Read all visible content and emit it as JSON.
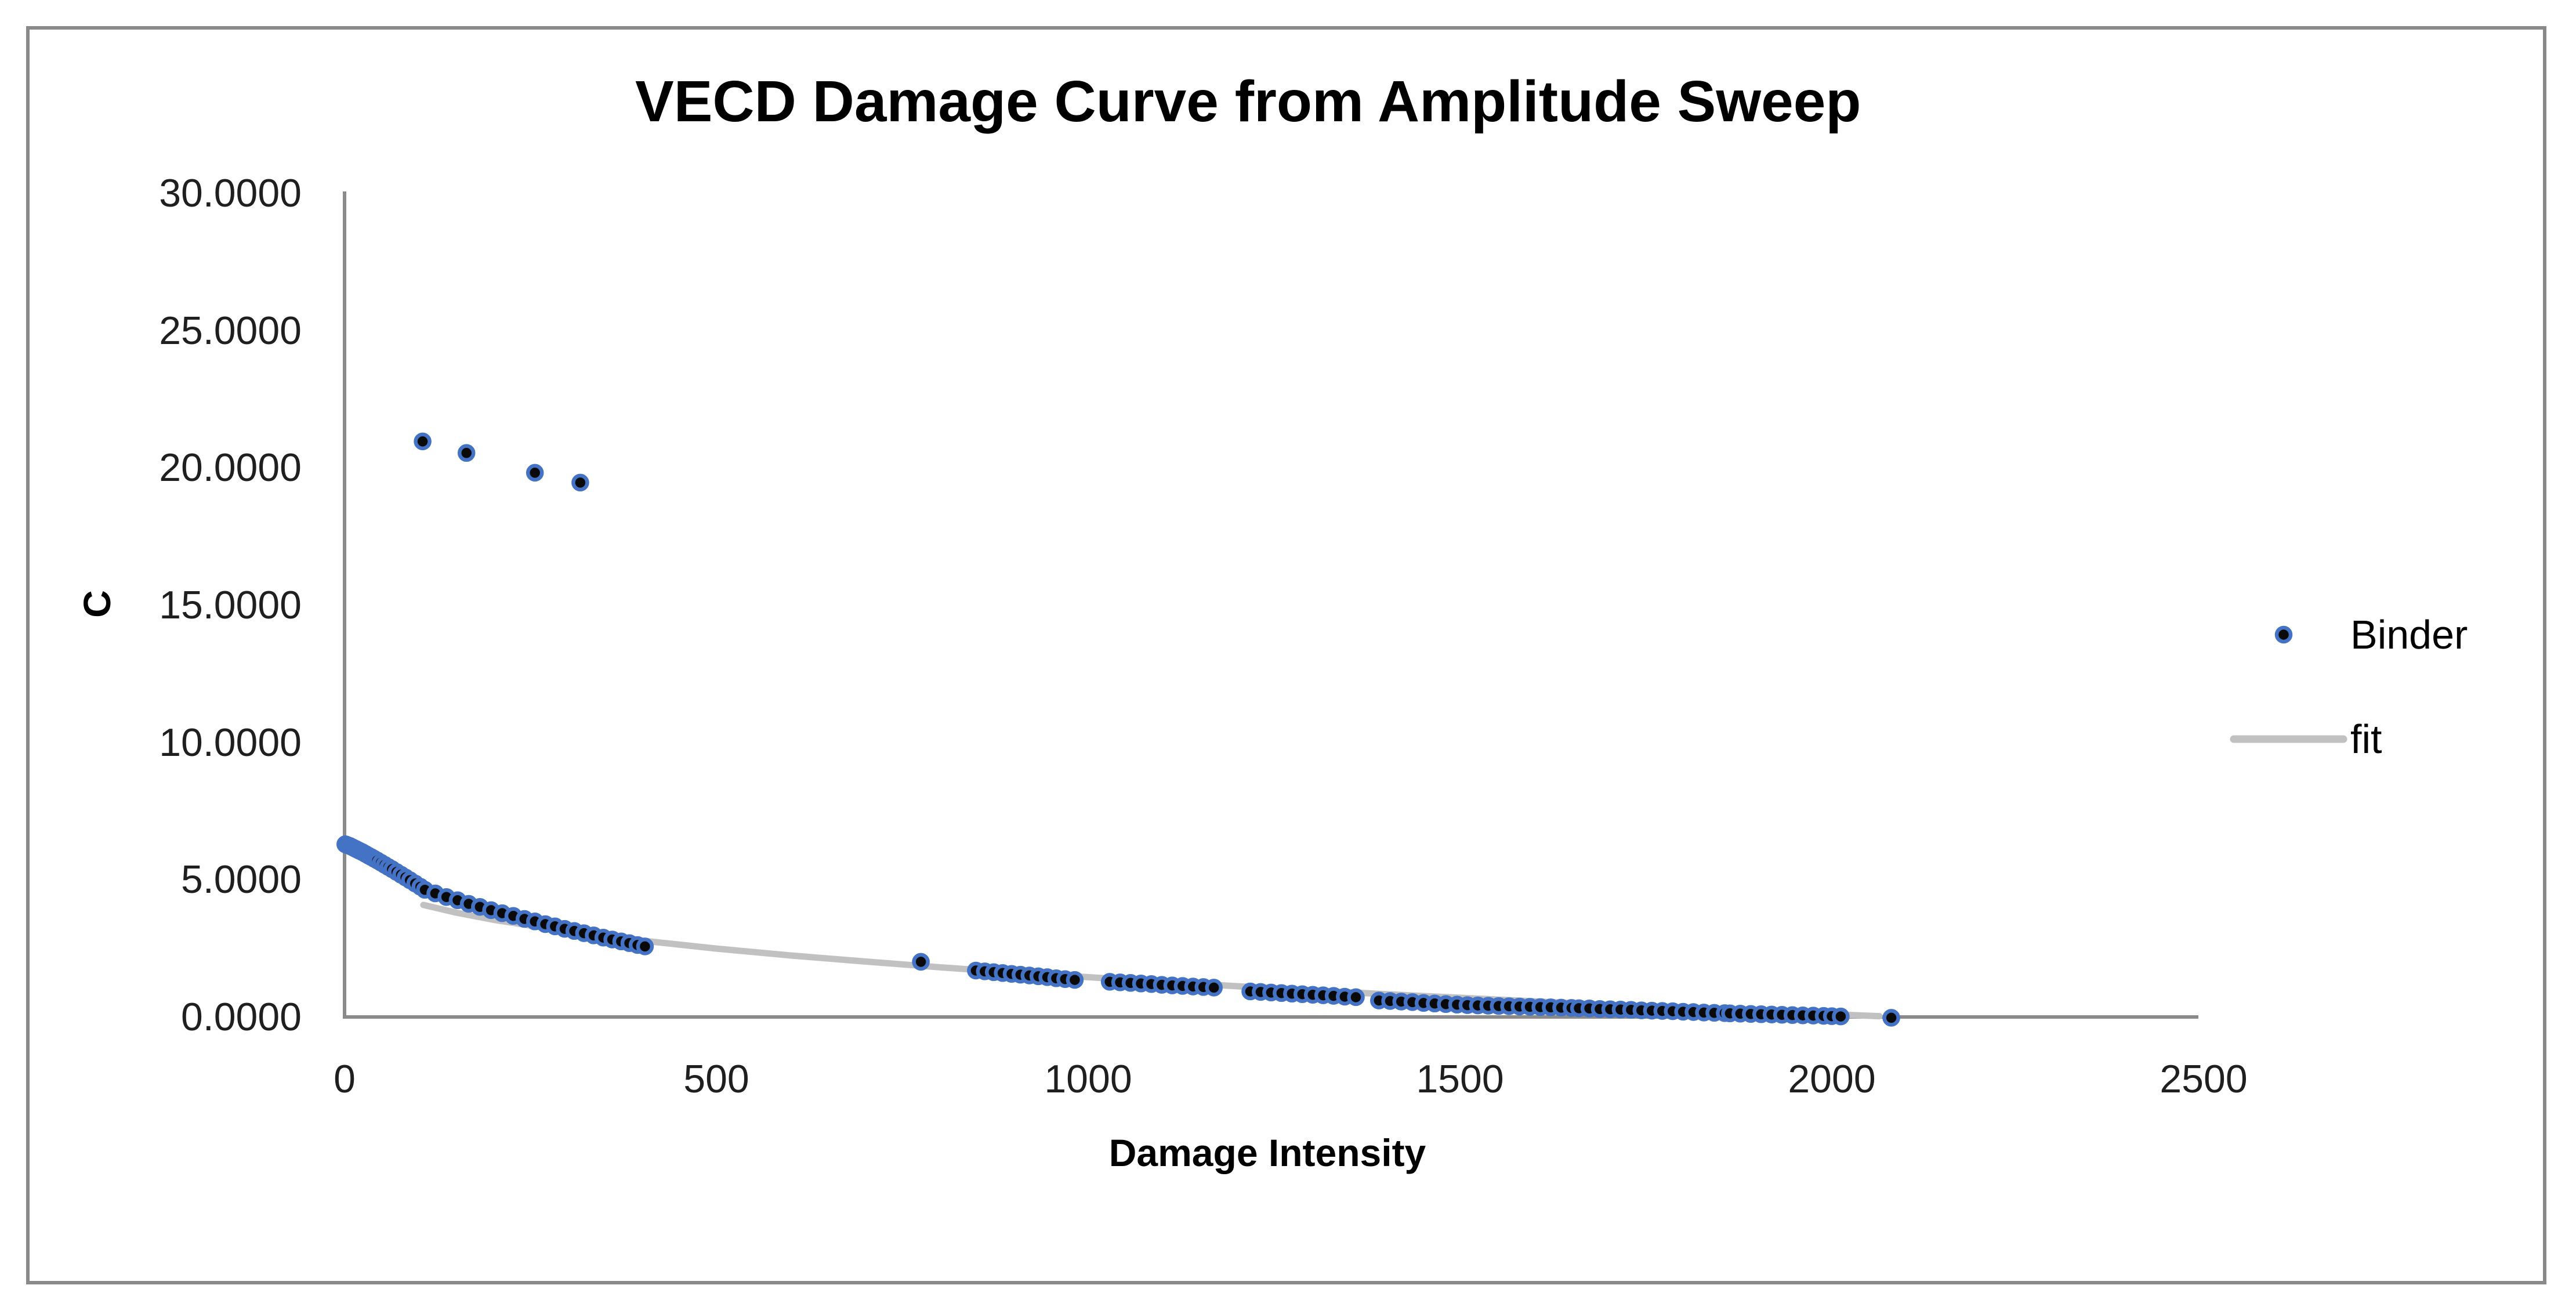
{
  "frame": {
    "background": "#ffffff",
    "border_color": "#898989"
  },
  "chart": {
    "title": "VECD Damage Curve from Amplitude Sweep",
    "x_axis": {
      "title": "Damage Intensity",
      "tick_labels": [
        "0",
        "500",
        "1000",
        "1500",
        "2000",
        "2500"
      ]
    },
    "y_axis": {
      "title": "C",
      "tick_labels": [
        "30.0000",
        "25.0000",
        "20.0000",
        "15.0000",
        "10.0000",
        "5.0000",
        "0.0000"
      ]
    },
    "legend": [
      {
        "label": "Binder",
        "type": "marker"
      },
      {
        "label": "fit",
        "type": "line"
      }
    ],
    "colors": {
      "marker_ring": "#4472C4",
      "marker_core": "#0a0a0a",
      "fit_line": "#c1c1c1",
      "axis_line": "#8a8a8a",
      "border": "#898989",
      "tick_text": "#1f1f1f"
    }
  },
  "chart_data": {
    "type": "scatter",
    "title": "VECD Damage Curve from Amplitude Sweep",
    "xlabel": "Damage Intensity",
    "ylabel": "C",
    "xlim": [
      0,
      2500
    ],
    "ylim": [
      0,
      30
    ],
    "x_ticks": [
      0,
      500,
      1000,
      1500,
      2000,
      2500
    ],
    "y_ticks": [
      30,
      25,
      20,
      15,
      10,
      5,
      0
    ],
    "grid": false,
    "legend_position": "right",
    "series": [
      {
        "name": "Binder",
        "type": "scatter",
        "points": [
          [
            105,
            20.96
          ],
          [
            164,
            20.54
          ],
          [
            256,
            19.82
          ],
          [
            317,
            19.46
          ],
          [
            1,
            6.29
          ],
          [
            3,
            6.27
          ],
          [
            5,
            6.25
          ],
          [
            7,
            6.23
          ],
          [
            9,
            6.2
          ],
          [
            12,
            6.16
          ],
          [
            15,
            6.12
          ],
          [
            18,
            6.08
          ],
          [
            21,
            6.04
          ],
          [
            24,
            6.0
          ],
          [
            28,
            5.94
          ],
          [
            32,
            5.88
          ],
          [
            36,
            5.82
          ],
          [
            40,
            5.76
          ],
          [
            44,
            5.7
          ],
          [
            49,
            5.62
          ],
          [
            54,
            5.54
          ],
          [
            59,
            5.46
          ],
          [
            64,
            5.38
          ],
          [
            70,
            5.28
          ],
          [
            76,
            5.18
          ],
          [
            82,
            5.08
          ],
          [
            88,
            4.98
          ],
          [
            95,
            4.86
          ],
          [
            102,
            4.74
          ],
          [
            108,
            4.63
          ],
          [
            122,
            4.5
          ],
          [
            137,
            4.37
          ],
          [
            152,
            4.25
          ],
          [
            167,
            4.12
          ],
          [
            182,
            4.01
          ],
          [
            197,
            3.89
          ],
          [
            212,
            3.78
          ],
          [
            227,
            3.68
          ],
          [
            242,
            3.57
          ],
          [
            256,
            3.48
          ],
          [
            270,
            3.38
          ],
          [
            283,
            3.3
          ],
          [
            296,
            3.21
          ],
          [
            309,
            3.13
          ],
          [
            322,
            3.05
          ],
          [
            335,
            2.97
          ],
          [
            348,
            2.89
          ],
          [
            360,
            2.82
          ],
          [
            372,
            2.75
          ],
          [
            383,
            2.69
          ],
          [
            394,
            2.62
          ],
          [
            404,
            2.57
          ],
          [
            775,
            2.01
          ],
          [
            849,
            1.69
          ],
          [
            861,
            1.66
          ],
          [
            873,
            1.63
          ],
          [
            885,
            1.6
          ],
          [
            897,
            1.57
          ],
          [
            909,
            1.54
          ],
          [
            921,
            1.51
          ],
          [
            933,
            1.48
          ],
          [
            945,
            1.45
          ],
          [
            957,
            1.41
          ],
          [
            969,
            1.38
          ],
          [
            982,
            1.35
          ],
          [
            1029,
            1.28
          ],
          [
            1043,
            1.26
          ],
          [
            1057,
            1.24
          ],
          [
            1071,
            1.22
          ],
          [
            1085,
            1.2
          ],
          [
            1099,
            1.17
          ],
          [
            1113,
            1.15
          ],
          [
            1127,
            1.13
          ],
          [
            1141,
            1.11
          ],
          [
            1155,
            1.09
          ],
          [
            1169,
            1.07
          ],
          [
            1218,
            0.93
          ],
          [
            1232,
            0.91
          ],
          [
            1246,
            0.89
          ],
          [
            1260,
            0.87
          ],
          [
            1274,
            0.85
          ],
          [
            1288,
            0.83
          ],
          [
            1302,
            0.81
          ],
          [
            1316,
            0.79
          ],
          [
            1330,
            0.77
          ],
          [
            1345,
            0.74
          ],
          [
            1360,
            0.72
          ],
          [
            1391,
            0.6
          ],
          [
            1406,
            0.58
          ],
          [
            1421,
            0.56
          ],
          [
            1436,
            0.54
          ],
          [
            1451,
            0.51
          ],
          [
            1466,
            0.49
          ],
          [
            1481,
            0.47
          ],
          [
            1496,
            0.45
          ],
          [
            1510,
            0.43
          ],
          [
            1524,
            0.42
          ],
          [
            1538,
            0.41
          ],
          [
            1552,
            0.4
          ],
          [
            1566,
            0.39
          ],
          [
            1580,
            0.38
          ],
          [
            1594,
            0.37
          ],
          [
            1608,
            0.36
          ],
          [
            1622,
            0.35
          ],
          [
            1636,
            0.34
          ],
          [
            1650,
            0.33
          ],
          [
            1660,
            0.32
          ],
          [
            1674,
            0.31
          ],
          [
            1688,
            0.29
          ],
          [
            1702,
            0.28
          ],
          [
            1716,
            0.27
          ],
          [
            1730,
            0.26
          ],
          [
            1744,
            0.24
          ],
          [
            1758,
            0.23
          ],
          [
            1772,
            0.22
          ],
          [
            1786,
            0.21
          ],
          [
            1800,
            0.19
          ],
          [
            1814,
            0.18
          ],
          [
            1828,
            0.16
          ],
          [
            1842,
            0.15
          ],
          [
            1856,
            0.14
          ],
          [
            1863,
            0.13
          ],
          [
            1877,
            0.12
          ],
          [
            1891,
            0.11
          ],
          [
            1905,
            0.1
          ],
          [
            1919,
            0.09
          ],
          [
            1933,
            0.08
          ],
          [
            1947,
            0.07
          ],
          [
            1961,
            0.06
          ],
          [
            1975,
            0.05
          ],
          [
            1989,
            0.04
          ],
          [
            2000,
            0.03
          ],
          [
            2012,
            0.02
          ],
          [
            2080,
            -0.03
          ]
        ]
      },
      {
        "name": "fit",
        "type": "line",
        "points": [
          [
            106,
            4.08
          ],
          [
            150,
            3.8
          ],
          [
            200,
            3.54
          ],
          [
            300,
            3.12
          ],
          [
            400,
            2.78
          ],
          [
            500,
            2.49
          ],
          [
            600,
            2.24
          ],
          [
            700,
            2.02
          ],
          [
            800,
            1.81
          ],
          [
            900,
            1.62
          ],
          [
            1000,
            1.45
          ],
          [
            1100,
            1.28
          ],
          [
            1200,
            1.12
          ],
          [
            1300,
            0.97
          ],
          [
            1400,
            0.83
          ],
          [
            1500,
            0.7
          ],
          [
            1600,
            0.57
          ],
          [
            1700,
            0.44
          ],
          [
            1800,
            0.32
          ],
          [
            1900,
            0.21
          ],
          [
            2000,
            0.1
          ],
          [
            2064,
            0.03
          ]
        ]
      }
    ]
  }
}
